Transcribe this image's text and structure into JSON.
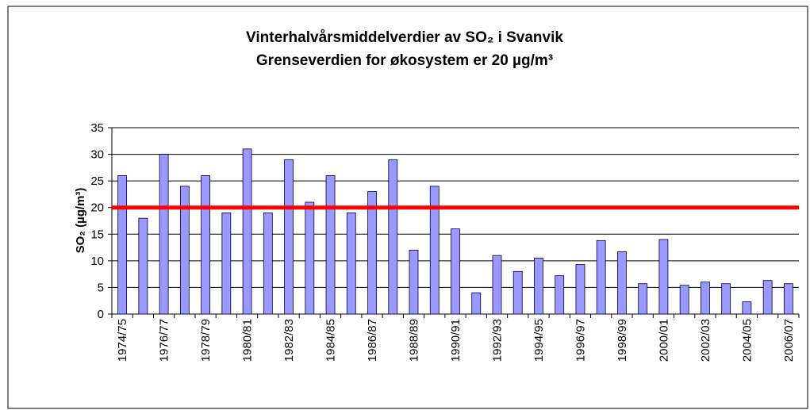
{
  "chart_data": {
    "type": "bar",
    "title": [
      "Vinterhalvårsmiddelverdier  av SO₂ i Svanvik",
      "Grenseverdien for økosystem  er 20 µg/m³"
    ],
    "y_label": "SO₂ (µg/m³)",
    "categories": [
      "1974/75",
      null,
      "1976/77",
      null,
      "1978/79",
      null,
      "1980/81",
      null,
      "1982/83",
      null,
      "1984/85",
      null,
      "1986/87",
      null,
      "1988/89",
      null,
      "1990/91",
      null,
      "1992/93",
      null,
      "1994/95",
      null,
      "1996/97",
      null,
      "1998/99",
      null,
      "2000/01",
      null,
      "2002/03",
      null,
      "2004/05",
      null,
      "2006/07"
    ],
    "values": [
      26,
      18,
      30,
      24,
      26,
      19,
      31,
      19,
      29,
      21,
      26,
      19,
      23,
      29,
      12,
      24,
      16,
      4,
      11,
      8,
      10.5,
      7.2,
      9.3,
      13.8,
      11.7,
      5.7,
      14,
      5.4,
      6,
      5.7,
      2.3,
      6.3,
      5.7
    ],
    "color": "#9999ff",
    "threshold": 20,
    "threshold_color": "#ff0000",
    "ylim": [
      0,
      35
    ],
    "yticks": [
      0,
      5,
      10,
      15,
      20,
      25,
      30,
      35
    ],
    "grid": true
  }
}
